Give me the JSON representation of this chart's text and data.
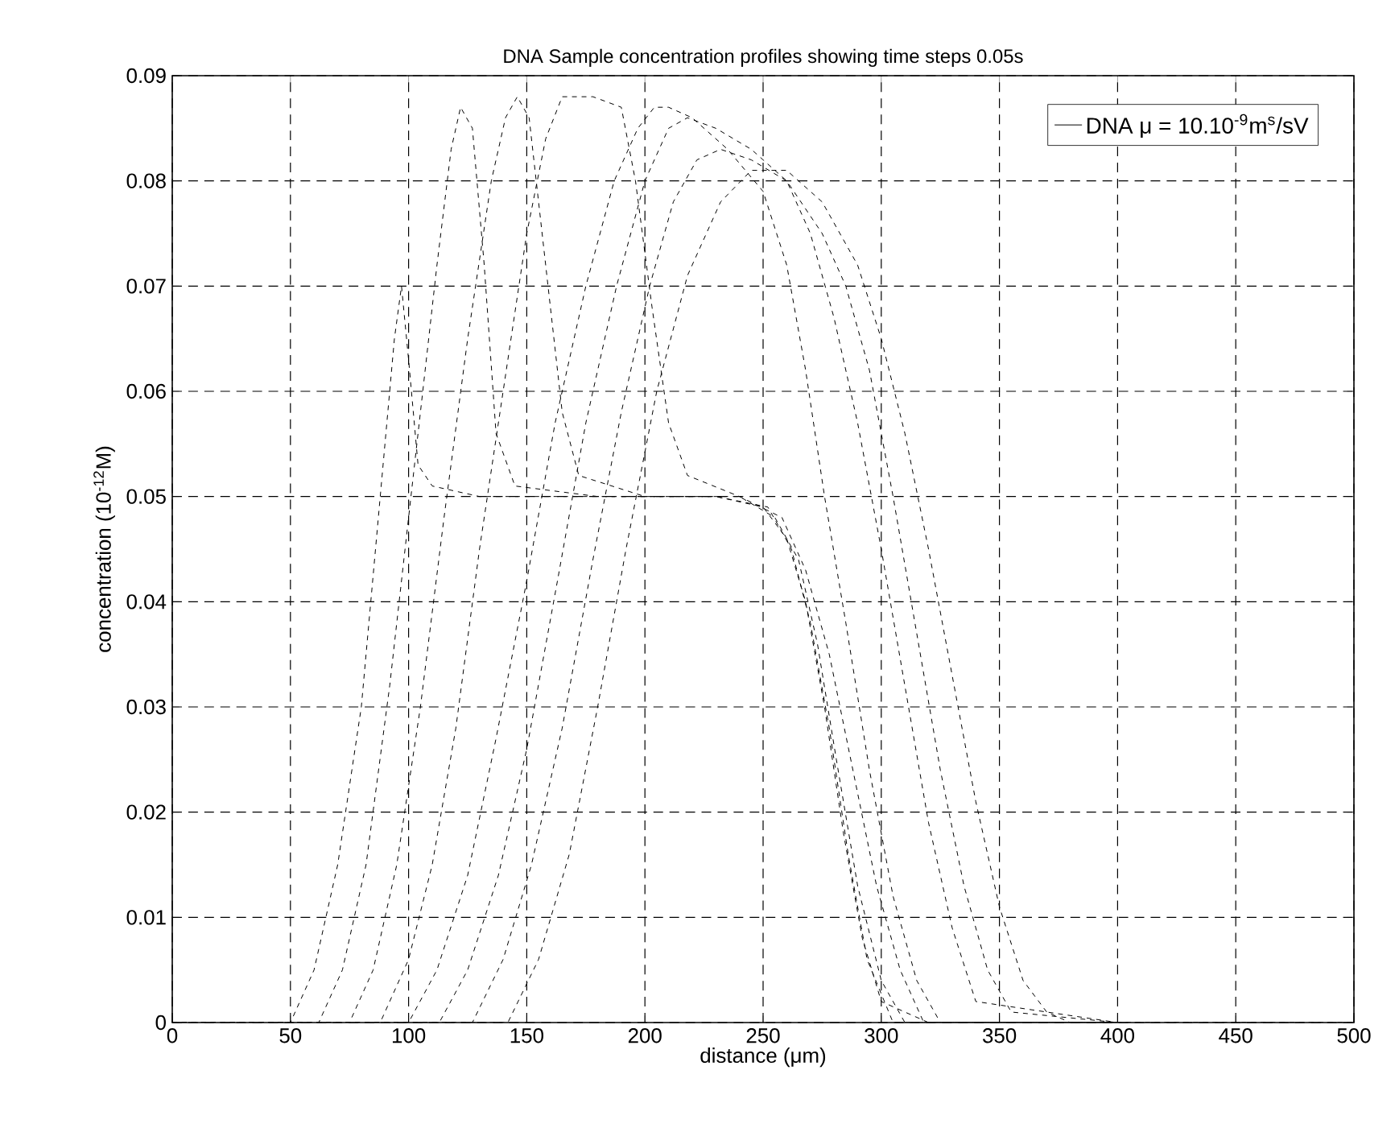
{
  "chart_data": {
    "type": "line",
    "title": "DNA Sample concentration profiles showing time steps 0.05s",
    "xlabel": "distance (μm)",
    "ylabel": "concentration (10$^{-12}$M)",
    "xlim": [
      0,
      500
    ],
    "ylim": [
      0,
      0.09
    ],
    "xticks": [
      0,
      50,
      100,
      150,
      200,
      250,
      300,
      350,
      400,
      450,
      500
    ],
    "yticks": [
      0,
      0.01,
      0.02,
      0.03,
      0.04,
      0.05,
      0.06,
      0.07,
      0.08,
      0.09
    ],
    "grid": true,
    "legend": "top right",
    "line_style": "dashed",
    "marker": "none",
    "series": [
      {
        "name": "DNA μ = 10.10$^{-9}$m$^{s}$/sV",
        "color": "#000000",
        "x": [
          0,
          50,
          60,
          70,
          80,
          88,
          94,
          97,
          100,
          104,
          110,
          130,
          160,
          200,
          230,
          250,
          260,
          268,
          276,
          284,
          292,
          300,
          320,
          400,
          500
        ],
        "values": [
          0,
          0,
          0.005,
          0.015,
          0.03,
          0.05,
          0.065,
          0.07,
          0.063,
          0.053,
          0.051,
          0.05,
          0.05,
          0.05,
          0.05,
          0.049,
          0.046,
          0.04,
          0.03,
          0.018,
          0.008,
          0.002,
          0,
          0,
          0
        ]
      },
      {
        "color": "#000000",
        "x": [
          0,
          62,
          72,
          82,
          92,
          102,
          112,
          118,
          122,
          127,
          132,
          137,
          145,
          180,
          230,
          252,
          262,
          270,
          278,
          286,
          294,
          305,
          400
        ],
        "values": [
          0,
          0,
          0.005,
          0.015,
          0.032,
          0.052,
          0.072,
          0.083,
          0.087,
          0.085,
          0.072,
          0.056,
          0.051,
          0.05,
          0.05,
          0.049,
          0.045,
          0.038,
          0.028,
          0.016,
          0.006,
          0,
          0
        ]
      },
      {
        "color": "#000000",
        "x": [
          0,
          75,
          85,
          95,
          105,
          115,
          125,
          135,
          141,
          146,
          151,
          158,
          165,
          172,
          200,
          240,
          255,
          265,
          273,
          281,
          290,
          300,
          310,
          400
        ],
        "values": [
          0,
          0,
          0.005,
          0.015,
          0.03,
          0.048,
          0.065,
          0.08,
          0.086,
          0.088,
          0.086,
          0.072,
          0.058,
          0.052,
          0.05,
          0.05,
          0.048,
          0.044,
          0.036,
          0.025,
          0.013,
          0.004,
          0,
          0
        ]
      },
      {
        "color": "#000000",
        "x": [
          0,
          88,
          100,
          110,
          120,
          130,
          140,
          150,
          158,
          165,
          178,
          190,
          196,
          203,
          210,
          218,
          240,
          258,
          268,
          278,
          288,
          298,
          308,
          318,
          400
        ],
        "values": [
          0,
          0,
          0.006,
          0.015,
          0.028,
          0.045,
          0.06,
          0.075,
          0.084,
          0.088,
          0.088,
          0.087,
          0.08,
          0.068,
          0.057,
          0.052,
          0.05,
          0.048,
          0.043,
          0.035,
          0.024,
          0.013,
          0.005,
          0,
          0
        ]
      },
      {
        "color": "#000000",
        "x": [
          0,
          100,
          112,
          125,
          137,
          150,
          162,
          175,
          187,
          197,
          204,
          210,
          220,
          235,
          250,
          260,
          268,
          276,
          285,
          295,
          305,
          315,
          325,
          400
        ],
        "values": [
          0,
          0,
          0.005,
          0.014,
          0.027,
          0.042,
          0.057,
          0.07,
          0.08,
          0.085,
          0.087,
          0.087,
          0.086,
          0.083,
          0.079,
          0.072,
          0.062,
          0.05,
          0.038,
          0.024,
          0.012,
          0.004,
          0,
          0
        ]
      },
      {
        "color": "#000000",
        "x": [
          0,
          113,
          125,
          138,
          150,
          163,
          175,
          188,
          200,
          210,
          218,
          230,
          245,
          260,
          270,
          280,
          290,
          300,
          310,
          320,
          330,
          340,
          400
        ],
        "values": [
          0,
          0,
          0.005,
          0.014,
          0.026,
          0.042,
          0.057,
          0.07,
          0.08,
          0.085,
          0.086,
          0.085,
          0.083,
          0.08,
          0.075,
          0.067,
          0.057,
          0.045,
          0.032,
          0.019,
          0.009,
          0.002,
          0
        ]
      },
      {
        "color": "#000000",
        "x": [
          0,
          127,
          140,
          152,
          165,
          178,
          190,
          202,
          212,
          222,
          232,
          245,
          260,
          275,
          285,
          295,
          305,
          315,
          325,
          335,
          345,
          355,
          400
        ],
        "values": [
          0,
          0,
          0.006,
          0.015,
          0.028,
          0.044,
          0.058,
          0.07,
          0.078,
          0.082,
          0.083,
          0.082,
          0.08,
          0.075,
          0.07,
          0.062,
          0.05,
          0.037,
          0.024,
          0.013,
          0.005,
          0.001,
          0
        ]
      },
      {
        "color": "#000000",
        "x": [
          0,
          142,
          155,
          168,
          180,
          192,
          205,
          218,
          232,
          245,
          260,
          275,
          290,
          300,
          310,
          320,
          330,
          340,
          350,
          360,
          370,
          380,
          500
        ],
        "values": [
          0,
          0,
          0.006,
          0.016,
          0.03,
          0.045,
          0.06,
          0.071,
          0.078,
          0.081,
          0.081,
          0.078,
          0.072,
          0.065,
          0.056,
          0.045,
          0.033,
          0.021,
          0.011,
          0.004,
          0.001,
          0,
          0
        ]
      }
    ]
  }
}
